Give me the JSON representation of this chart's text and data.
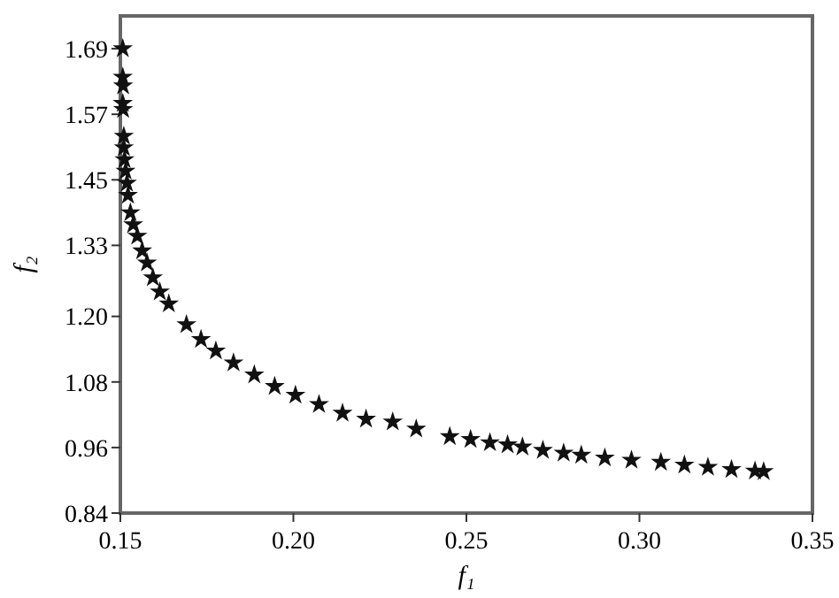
{
  "chart_data": {
    "type": "scatter",
    "xlabel": "f₁",
    "ylabel": "f₂",
    "color": "#111111",
    "marker": "star",
    "grid": false,
    "x": [
      0.1507,
      0.1507,
      0.1508,
      0.1507,
      0.1508,
      0.151,
      0.151,
      0.1512,
      0.1515,
      0.1519,
      0.1522,
      0.1529,
      0.1537,
      0.1549,
      0.1563,
      0.1577,
      0.1594,
      0.1614,
      0.164,
      0.1691,
      0.1733,
      0.1776,
      0.1827,
      0.1887,
      0.1946,
      0.2006,
      0.2074,
      0.2142,
      0.221,
      0.2287,
      0.2355,
      0.2452,
      0.2512,
      0.2568,
      0.2619,
      0.2662,
      0.2721,
      0.2781,
      0.2832,
      0.29,
      0.2977,
      0.3062,
      0.313,
      0.3198,
      0.3266,
      0.3334,
      0.3359
    ],
    "values": [
      1.69,
      1.638,
      1.622,
      1.59,
      1.579,
      1.53,
      1.509,
      1.487,
      1.466,
      1.444,
      1.422,
      1.39,
      1.368,
      1.347,
      1.32,
      1.298,
      1.271,
      1.245,
      1.223,
      1.185,
      1.158,
      1.137,
      1.115,
      1.093,
      1.072,
      1.056,
      1.039,
      1.023,
      1.012,
      1.007,
      0.994,
      0.98,
      0.975,
      0.969,
      0.965,
      0.961,
      0.955,
      0.95,
      0.946,
      0.941,
      0.937,
      0.933,
      0.928,
      0.924,
      0.92,
      0.917,
      0.916
    ],
    "xlim": [
      0.15,
      0.35
    ],
    "xticks": [
      {
        "value": 0.15,
        "label": "0.15"
      },
      {
        "value": 0.2,
        "label": "0.20"
      },
      {
        "value": 0.25,
        "label": "0.25"
      },
      {
        "value": 0.3,
        "label": "0.30"
      },
      {
        "value": 0.35,
        "label": "0.35"
      }
    ],
    "ylim": [
      0.84,
      1.75
    ],
    "yticks": [
      0.84,
      0.96,
      1.08,
      {
        "value": 1.2,
        "label": "1.20"
      },
      1.33,
      1.45,
      1.57,
      1.69
    ]
  }
}
